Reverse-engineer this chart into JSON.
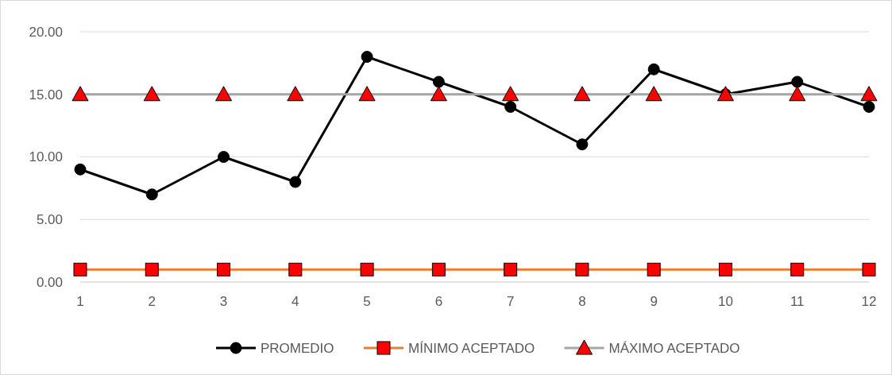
{
  "chart_data": {
    "type": "line",
    "x": [
      1,
      2,
      3,
      4,
      5,
      6,
      7,
      8,
      9,
      10,
      11,
      12
    ],
    "xlim": [
      1,
      12
    ],
    "xticks": [
      1,
      2,
      3,
      4,
      5,
      6,
      7,
      8,
      9,
      10,
      11,
      12
    ],
    "series": [
      {
        "name": "PROMEDIO",
        "color": "#000000",
        "marker": "circle",
        "values": [
          9,
          7,
          10,
          8,
          18,
          16,
          14,
          11,
          17,
          15,
          16,
          14
        ]
      },
      {
        "name": "MÍNIMO ACEPTADO",
        "color": "#ed7d31",
        "marker": "square",
        "colors": [
          "#ff0000",
          "#ff0000",
          "#ff0000",
          "#ff0000",
          "#ff0000",
          "#ff0000",
          "#ff0000",
          "#ff0000",
          "#ff0000",
          "#ff0000",
          "#ff0000",
          "#ff0000"
        ],
        "values": [
          1,
          1,
          1,
          1,
          1,
          1,
          1,
          1,
          1,
          1,
          1,
          1
        ]
      },
      {
        "name": "MÁXIMO ACEPTADO",
        "color": "#a5a5a5",
        "marker": "triangle",
        "colors": [
          "#ff0000",
          "#ff0000",
          "#ff0000",
          "#ff0000",
          "#ff0000",
          "#ff0000",
          "#ff0000",
          "#ff0000",
          "#ff0000",
          "#ff0000",
          "#ff0000",
          "#ff0000"
        ],
        "values": [
          15,
          15,
          15,
          15,
          15,
          15,
          15,
          15,
          15,
          15,
          15,
          15
        ]
      }
    ],
    "ylim": [
      0,
      20
    ],
    "yticks": [
      {
        "value": 0,
        "label": "0.00"
      },
      {
        "value": 5,
        "label": "5.00"
      },
      {
        "value": 10,
        "label": "10.00"
      },
      {
        "value": 15,
        "label": "15.00"
      },
      {
        "value": 20,
        "label": "20.00"
      }
    ],
    "grid": "y",
    "legend": "bottom"
  }
}
